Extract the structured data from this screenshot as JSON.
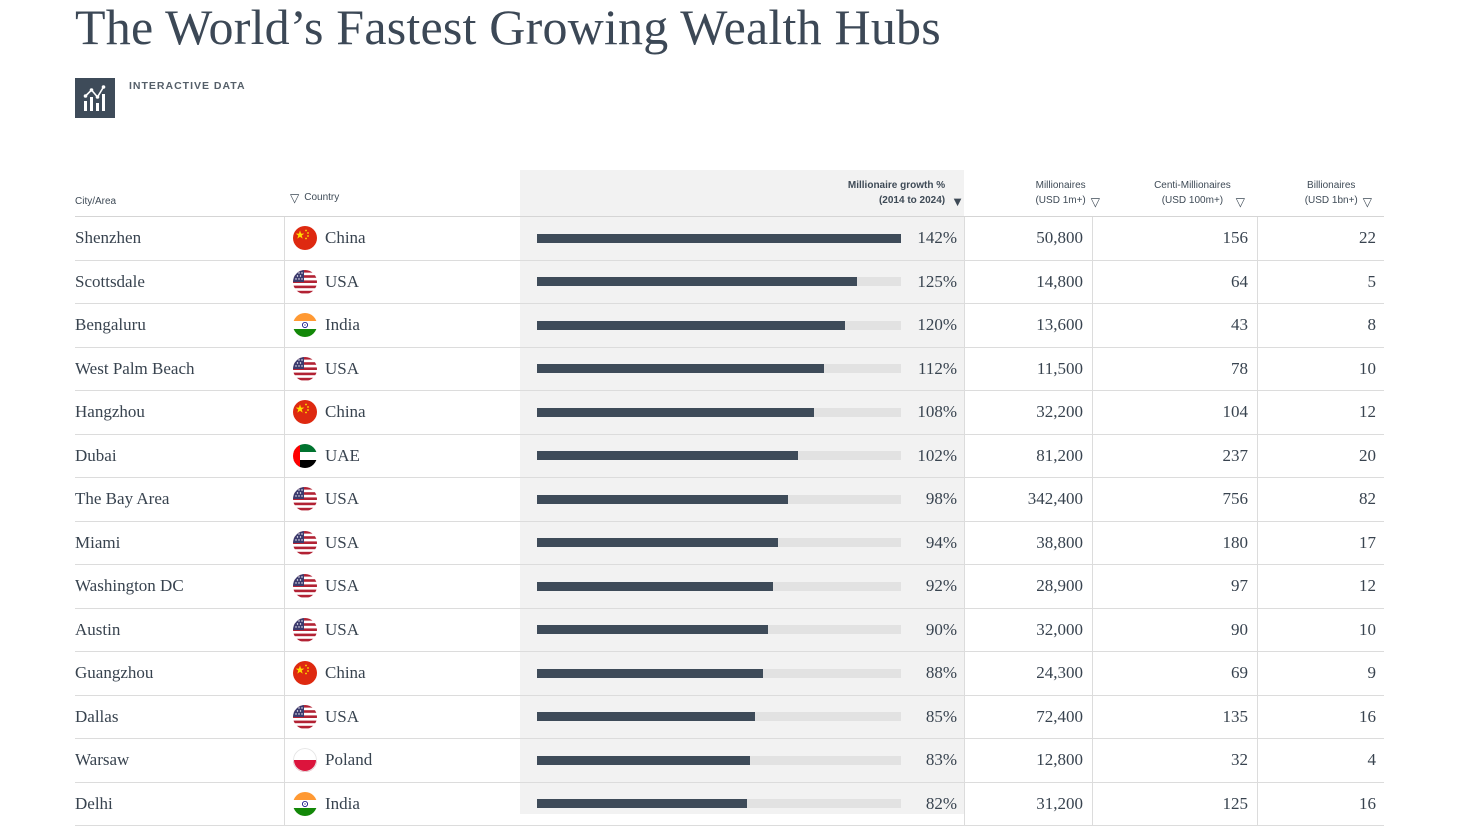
{
  "page": {
    "title": "The World’s Fastest Growing Wealth Hubs",
    "badge_label": "INTERACTIVE DATA",
    "badge_icon": "chart-icon"
  },
  "colors": {
    "bar": "#3e4b59",
    "track": "#e2e2e2",
    "text": "#38434f"
  },
  "table": {
    "headers": {
      "city": "City/Area",
      "country": "Country",
      "growth_line1": "Millionaire growth %",
      "growth_line2": "(2014 to 2024)",
      "millionaires_line1": "Millionaires",
      "millionaires_line2": "(USD 1m+)",
      "centi_line1": "Centi-Millionaires",
      "centi_line2": "(USD 100m+)",
      "billionaires_line1": "Billionaires",
      "billionaires_line2": "(USD 1bn+)"
    },
    "sort_column": "growth",
    "growth_max": 142,
    "rows": [
      {
        "city": "Shenzhen",
        "country": "China",
        "flag": "china",
        "growth": 142,
        "growth_label": "142%",
        "millionaires": "50,800",
        "centi": "156",
        "billionaires": "22"
      },
      {
        "city": "Scottsdale",
        "country": "USA",
        "flag": "usa",
        "growth": 125,
        "growth_label": "125%",
        "millionaires": "14,800",
        "centi": "64",
        "billionaires": "5"
      },
      {
        "city": "Bengaluru",
        "country": "India",
        "flag": "india",
        "growth": 120,
        "growth_label": "120%",
        "millionaires": "13,600",
        "centi": "43",
        "billionaires": "8"
      },
      {
        "city": "West Palm Beach",
        "country": "USA",
        "flag": "usa",
        "growth": 112,
        "growth_label": "112%",
        "millionaires": "11,500",
        "centi": "78",
        "billionaires": "10"
      },
      {
        "city": "Hangzhou",
        "country": "China",
        "flag": "china",
        "growth": 108,
        "growth_label": "108%",
        "millionaires": "32,200",
        "centi": "104",
        "billionaires": "12"
      },
      {
        "city": "Dubai",
        "country": "UAE",
        "flag": "uae",
        "growth": 102,
        "growth_label": "102%",
        "millionaires": "81,200",
        "centi": "237",
        "billionaires": "20"
      },
      {
        "city": "The Bay Area",
        "country": "USA",
        "flag": "usa",
        "growth": 98,
        "growth_label": "98%",
        "millionaires": "342,400",
        "centi": "756",
        "billionaires": "82"
      },
      {
        "city": "Miami",
        "country": "USA",
        "flag": "usa",
        "growth": 94,
        "growth_label": "94%",
        "millionaires": "38,800",
        "centi": "180",
        "billionaires": "17"
      },
      {
        "city": "Washington DC",
        "country": "USA",
        "flag": "usa",
        "growth": 92,
        "growth_label": "92%",
        "millionaires": "28,900",
        "centi": "97",
        "billionaires": "12"
      },
      {
        "city": "Austin",
        "country": "USA",
        "flag": "usa",
        "growth": 90,
        "growth_label": "90%",
        "millionaires": "32,000",
        "centi": "90",
        "billionaires": "10"
      },
      {
        "city": "Guangzhou",
        "country": "China",
        "flag": "china",
        "growth": 88,
        "growth_label": "88%",
        "millionaires": "24,300",
        "centi": "69",
        "billionaires": "9"
      },
      {
        "city": "Dallas",
        "country": "USA",
        "flag": "usa",
        "growth": 85,
        "growth_label": "85%",
        "millionaires": "72,400",
        "centi": "135",
        "billionaires": "16"
      },
      {
        "city": "Warsaw",
        "country": "Poland",
        "flag": "poland",
        "growth": 83,
        "growth_label": "83%",
        "millionaires": "12,800",
        "centi": "32",
        "billionaires": "4"
      },
      {
        "city": "Delhi",
        "country": "India",
        "flag": "india",
        "growth": 82,
        "growth_label": "82%",
        "millionaires": "31,200",
        "centi": "125",
        "billionaires": "16"
      }
    ]
  }
}
